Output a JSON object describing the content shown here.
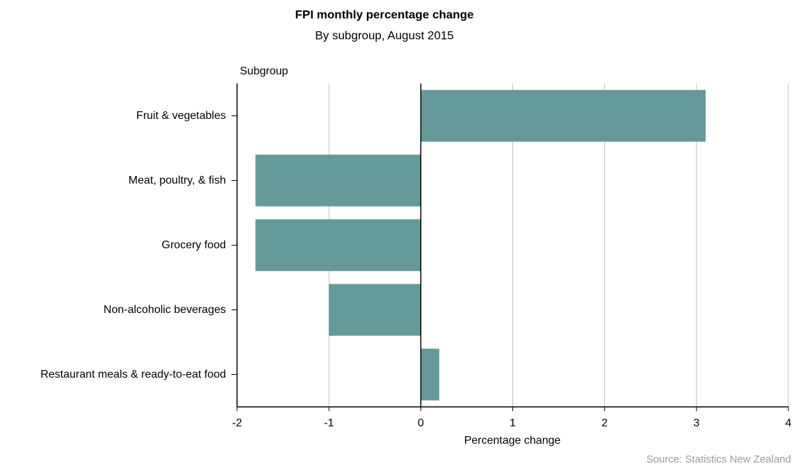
{
  "chart_data": {
    "type": "barh",
    "title": "FPI monthly percentage change",
    "subtitle": "By subgroup, August 2015",
    "y_axis_title": "Subgroup",
    "x_axis_title": "Percentage change",
    "source": "Source: Statistics New Zealand",
    "categories": [
      "Fruit & vegetables",
      "Meat, poultry, & fish",
      "Grocery food",
      "Non-alcoholic beverages",
      "Restaurant meals & ready-to-eat food"
    ],
    "values": [
      3.1,
      -1.8,
      -1.8,
      -1.0,
      0.2
    ],
    "color": "#669999",
    "xlim": [
      -2,
      4
    ],
    "xticks": [
      -2,
      -1,
      0,
      1,
      2,
      3,
      4
    ],
    "grid": true
  }
}
